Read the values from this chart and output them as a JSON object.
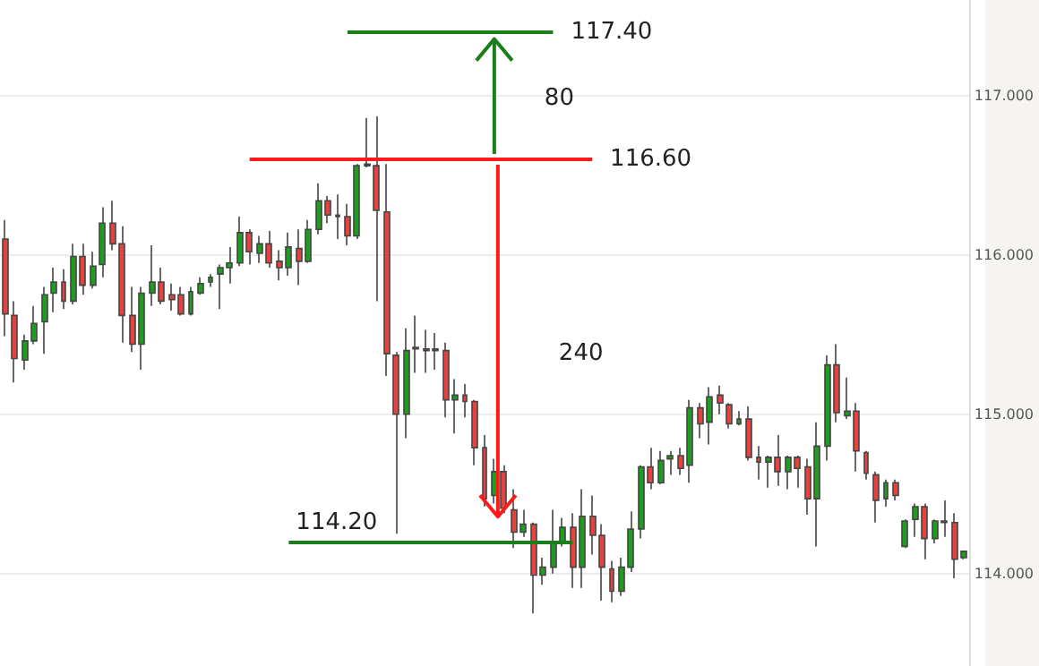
{
  "chart_data": {
    "type": "candlestick",
    "tick_labels": "y",
    "grid": "y",
    "categories": [
      null,
      null,
      null,
      null,
      null,
      null,
      null,
      null,
      null,
      null,
      null,
      null,
      null,
      null,
      null,
      null,
      null,
      null,
      null,
      null,
      null,
      null,
      null,
      null,
      null,
      null,
      null,
      null,
      null,
      null,
      null,
      null,
      null,
      null,
      null,
      null,
      null,
      null,
      null,
      null,
      null,
      null,
      null,
      null,
      null,
      null,
      null,
      null,
      null,
      null,
      null,
      null,
      null,
      null,
      null,
      null,
      null,
      null,
      null,
      null,
      null,
      null,
      null,
      null,
      null,
      null,
      null,
      null,
      null,
      null,
      null,
      null,
      null,
      null,
      null,
      null,
      null,
      null,
      null,
      null,
      null,
      null,
      null,
      null,
      null,
      null,
      null,
      null,
      null,
      null,
      null,
      null,
      null,
      null,
      null,
      null,
      null,
      null,
      null
    ],
    "ohlc": [
      [
        116.1,
        116.22,
        115.49,
        115.63
      ],
      [
        115.62,
        115.71,
        115.2,
        115.35
      ],
      [
        115.34,
        115.5,
        115.28,
        115.46
      ],
      [
        115.46,
        115.68,
        115.44,
        115.57
      ],
      [
        115.58,
        115.8,
        115.38,
        115.75
      ],
      [
        115.76,
        115.92,
        115.64,
        115.83
      ],
      [
        115.83,
        115.91,
        115.66,
        115.71
      ],
      [
        115.71,
        116.07,
        115.69,
        115.99
      ],
      [
        115.99,
        116.07,
        115.75,
        115.81
      ],
      [
        115.81,
        116.02,
        115.79,
        115.93
      ],
      [
        115.94,
        116.3,
        115.86,
        116.2
      ],
      [
        116.2,
        116.34,
        116.03,
        116.07
      ],
      [
        116.07,
        116.18,
        115.45,
        115.62
      ],
      [
        115.62,
        115.8,
        115.39,
        115.44
      ],
      [
        115.44,
        115.8,
        115.28,
        115.76
      ],
      [
        115.76,
        116.06,
        115.68,
        115.83
      ],
      [
        115.83,
        115.92,
        115.69,
        115.71
      ],
      [
        115.75,
        115.82,
        115.65,
        115.72
      ],
      [
        115.75,
        115.8,
        115.62,
        115.63
      ],
      [
        115.63,
        115.8,
        115.62,
        115.77
      ],
      [
        115.76,
        115.86,
        115.75,
        115.82
      ],
      [
        115.83,
        115.88,
        115.8,
        115.86
      ],
      [
        115.88,
        115.94,
        115.66,
        115.92
      ],
      [
        115.92,
        116.05,
        115.82,
        115.95
      ],
      [
        115.95,
        116.24,
        115.93,
        116.14
      ],
      [
        116.14,
        116.16,
        115.94,
        116.02
      ],
      [
        116.01,
        116.12,
        115.95,
        116.07
      ],
      [
        116.07,
        116.15,
        115.92,
        115.95
      ],
      [
        115.96,
        116.03,
        115.84,
        115.92
      ],
      [
        115.92,
        116.14,
        115.87,
        116.05
      ],
      [
        116.04,
        116.16,
        115.81,
        115.96
      ],
      [
        115.96,
        116.22,
        115.95,
        116.16
      ],
      [
        116.16,
        116.45,
        116.13,
        116.34
      ],
      [
        116.34,
        116.37,
        116.2,
        116.25
      ],
      [
        116.25,
        116.38,
        116.1,
        116.24
      ],
      [
        116.24,
        116.32,
        116.06,
        116.12
      ],
      [
        116.12,
        116.57,
        116.1,
        116.56
      ],
      [
        116.57,
        116.86,
        116.55,
        116.56
      ],
      [
        116.56,
        116.87,
        115.71,
        116.28
      ],
      [
        116.27,
        116.57,
        115.24,
        115.38
      ],
      [
        115.37,
        115.39,
        114.25,
        115.0
      ],
      [
        115.0,
        115.54,
        114.85,
        115.4
      ],
      [
        115.42,
        115.62,
        115.26,
        115.41
      ],
      [
        115.41,
        115.53,
        115.26,
        115.4
      ],
      [
        115.41,
        115.51,
        115.28,
        115.4
      ],
      [
        115.4,
        115.45,
        114.98,
        115.09
      ],
      [
        115.09,
        115.22,
        114.88,
        115.12
      ],
      [
        115.12,
        115.19,
        114.98,
        115.08
      ],
      [
        115.08,
        115.09,
        114.68,
        114.79
      ],
      [
        114.79,
        114.87,
        114.42,
        114.47
      ],
      [
        114.49,
        114.72,
        114.44,
        114.64
      ],
      [
        114.64,
        114.68,
        114.38,
        114.41
      ],
      [
        114.4,
        114.53,
        114.16,
        114.26
      ],
      [
        114.26,
        114.4,
        114.23,
        114.31
      ],
      [
        114.31,
        114.32,
        113.75,
        113.99
      ],
      [
        113.99,
        114.1,
        113.93,
        114.04
      ],
      [
        114.04,
        114.4,
        114.0,
        114.19
      ],
      [
        114.19,
        114.35,
        114.17,
        114.29
      ],
      [
        114.29,
        114.38,
        113.91,
        114.04
      ],
      [
        114.04,
        114.53,
        113.91,
        114.36
      ],
      [
        114.36,
        114.49,
        114.12,
        114.24
      ],
      [
        114.24,
        114.31,
        113.83,
        114.04
      ],
      [
        114.03,
        114.08,
        113.82,
        113.89
      ],
      [
        113.89,
        114.1,
        113.86,
        114.04
      ],
      [
        114.04,
        114.39,
        114.01,
        114.28
      ],
      [
        114.28,
        114.68,
        114.22,
        114.67
      ],
      [
        114.67,
        114.79,
        114.53,
        114.57
      ],
      [
        114.57,
        114.77,
        114.56,
        114.71
      ],
      [
        114.72,
        114.77,
        114.62,
        114.74
      ],
      [
        114.74,
        114.79,
        114.62,
        114.66
      ],
      [
        114.68,
        115.09,
        114.57,
        115.04
      ],
      [
        115.04,
        115.07,
        114.85,
        114.94
      ],
      [
        114.95,
        115.17,
        114.81,
        115.11
      ],
      [
        115.12,
        115.18,
        115.0,
        115.07
      ],
      [
        115.06,
        115.07,
        114.91,
        114.94
      ],
      [
        114.94,
        115.02,
        114.93,
        114.97
      ],
      [
        114.97,
        115.05,
        114.71,
        114.73
      ],
      [
        114.73,
        114.8,
        114.59,
        114.7
      ],
      [
        114.7,
        114.74,
        114.54,
        114.73
      ],
      [
        114.73,
        114.87,
        114.55,
        114.64
      ],
      [
        114.64,
        114.74,
        114.53,
        114.73
      ],
      [
        114.73,
        114.74,
        114.54,
        114.66
      ],
      [
        114.67,
        114.72,
        114.37,
        114.47
      ],
      [
        114.47,
        114.95,
        114.17,
        114.8
      ],
      [
        114.8,
        115.37,
        114.71,
        115.31
      ],
      [
        115.31,
        115.44,
        114.95,
        115.01
      ],
      [
        114.99,
        115.23,
        114.97,
        115.02
      ],
      [
        115.02,
        115.07,
        114.64,
        114.77
      ],
      [
        114.76,
        114.77,
        114.59,
        114.63
      ],
      [
        114.62,
        114.64,
        114.32,
        114.46
      ],
      [
        114.47,
        114.59,
        114.42,
        114.57
      ],
      [
        114.57,
        114.59,
        114.46,
        114.49
      ],
      [
        114.17,
        114.34,
        114.16,
        114.33
      ],
      [
        114.34,
        114.44,
        114.23,
        114.42
      ],
      [
        114.42,
        114.44,
        114.09,
        114.22
      ],
      [
        114.22,
        114.34,
        114.19,
        114.33
      ],
      [
        114.33,
        114.46,
        114.23,
        114.32
      ],
      [
        114.32,
        114.38,
        113.97,
        114.09
      ],
      [
        114.1,
        114.14,
        114.09,
        114.14
      ]
    ],
    "colors": [
      "#e8423f",
      "#e8423f",
      "#1e9e1e",
      "#1e9e1e",
      "#1e9e1e",
      "#1e9e1e",
      "#e8423f",
      "#1e9e1e",
      "#e8423f",
      "#1e9e1e",
      "#1e9e1e",
      "#e8423f",
      "#e8423f",
      "#e8423f",
      "#1e9e1e",
      "#1e9e1e",
      "#e8423f",
      "#e8423f",
      "#e8423f",
      "#1e9e1e",
      "#1e9e1e",
      "#1e9e1e",
      "#1e9e1e",
      "#1e9e1e",
      "#1e9e1e",
      "#e8423f",
      "#1e9e1e",
      "#e8423f",
      "#e8423f",
      "#1e9e1e",
      "#e8423f",
      "#1e9e1e",
      "#1e9e1e",
      "#e8423f",
      "#e8423f",
      "#e8423f",
      "#1e9e1e",
      "#e8423f",
      "#e8423f",
      "#e8423f",
      "#e8423f",
      "#1e9e1e",
      "#e8423f",
      "#e8423f",
      "#e8423f",
      "#e8423f",
      "#1e9e1e",
      "#e8423f",
      "#e8423f",
      "#e8423f",
      "#1e9e1e",
      "#e8423f",
      "#e8423f",
      "#1e9e1e",
      "#e8423f",
      "#1e9e1e",
      "#1e9e1e",
      "#1e9e1e",
      "#e8423f",
      "#1e9e1e",
      "#e8423f",
      "#e8423f",
      "#e8423f",
      "#1e9e1e",
      "#1e9e1e",
      "#1e9e1e",
      "#e8423f",
      "#1e9e1e",
      "#1e9e1e",
      "#e8423f",
      "#1e9e1e",
      "#e8423f",
      "#1e9e1e",
      "#e8423f",
      "#e8423f",
      "#1e9e1e",
      "#e8423f",
      "#e8423f",
      "#1e9e1e",
      "#e8423f",
      "#1e9e1e",
      "#e8423f",
      "#e8423f",
      "#1e9e1e",
      "#1e9e1e",
      "#e8423f",
      "#1e9e1e",
      "#e8423f",
      "#e8423f",
      "#e8423f",
      "#1e9e1e",
      "#e8423f",
      "#1e9e1e",
      "#1e9e1e",
      "#e8423f",
      "#1e9e1e",
      "#e8423f",
      "#e8423f",
      "#1e9e1e"
    ],
    "ylim": [
      113.42,
      117.6
    ],
    "yticks": [
      {
        "value": 114,
        "label": "114.000"
      },
      {
        "value": 115,
        "label": "115.000"
      },
      {
        "value": 116,
        "label": "116.000"
      },
      {
        "value": 117,
        "label": "117.000"
      }
    ],
    "ref_lines": [
      {
        "axis": "y",
        "value": 117.4,
        "label": "117.40",
        "color": "#1a7f1a"
      },
      {
        "axis": "y",
        "value": 116.6,
        "label": "116.60",
        "color": "#ff1a1a"
      },
      {
        "axis": "y",
        "value": 114.2,
        "label": "114.20",
        "color": "#1a7f1a"
      }
    ],
    "annotations": [
      "80",
      "240"
    ]
  }
}
